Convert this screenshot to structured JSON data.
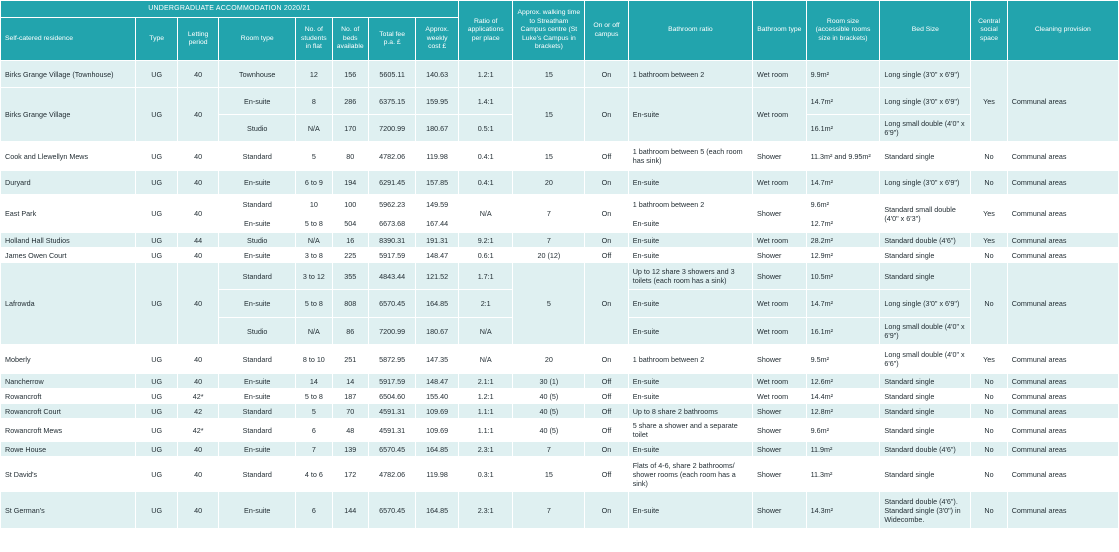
{
  "title": "UNDERGRADUATE ACCOMMODATION 2020/21",
  "headers": {
    "residence": "Self-catered residence",
    "type": "Type",
    "letting": "Letting period",
    "room_type": "Room type",
    "students": "No. of students in flat",
    "beds": "No. of beds available",
    "fee": "Total fee p.a. £",
    "weekly": "Approx. weekly cost £",
    "ratio": "Ratio of applications per place",
    "walk": "Approx. walking time to Streatham Campus centre (St Luke's Campus in brackets)",
    "campus": "On or off campus",
    "bathroom_ratio": "Bathroom ratio",
    "bathroom_type": "Bathroom type",
    "room_size": "Room size (accessible rooms size in brackets)",
    "bed_size": "Bed Size",
    "social": "Central social space",
    "cleaning": "Cleaning provision"
  },
  "cells": {
    "r0": {
      "name": "Birks Grange Village (Townhouse)",
      "type": "UG",
      "let": "40",
      "room": "Townhouse",
      "students": "12",
      "beds": "156",
      "fee": "5605.11",
      "weekly": "140.63",
      "ratio": "1.2:1",
      "walk": "15",
      "campus": "On",
      "bath": "1 bathroom between 2",
      "btype": "Wet room",
      "size": "9.9m²",
      "bed": "Long single (3'0\" x 6'9\")"
    },
    "social_birks": "Yes",
    "cleaning_birks": "Communal areas",
    "r1": {
      "name": "Birks Grange Village",
      "type": "UG",
      "let": "40",
      "room": "En-suite",
      "students": "8",
      "beds": "286",
      "fee": "6375.15",
      "weekly": "159.95",
      "ratio": "1.4:1",
      "walk": "15",
      "campus": "On",
      "bath": "En-suite",
      "btype": "Wet room",
      "size": "14.7m²",
      "bed": "Long single (3'0\" x 6'9\")"
    },
    "r1b": {
      "room": "Studio",
      "students": "N/A",
      "beds": "170",
      "fee": "7200.99",
      "weekly": "180.67",
      "ratio": "0.5:1",
      "size": "16.1m²",
      "bed": "Long small double (4'0\" x 6'9\")"
    },
    "r2": {
      "name": "Cook and Llewellyn Mews",
      "type": "UG",
      "let": "40",
      "room": "Standard",
      "students": "5",
      "beds": "80",
      "fee": "4782.06",
      "weekly": "119.98",
      "ratio": "0.4:1",
      "walk": "15",
      "campus": "Off",
      "bath": "1 bathroom between 5 (each room has sink)",
      "btype": "Shower",
      "size": "11.3m² and 9.95m²",
      "bed": "Standard single",
      "social": "No",
      "clean": "Communal areas"
    },
    "r3": {
      "name": "Duryard",
      "type": "UG",
      "let": "40",
      "room": "En-suite",
      "students": "6 to 9",
      "beds": "194",
      "fee": "6291.45",
      "weekly": "157.85",
      "ratio": "0.4:1",
      "walk": "20",
      "campus": "On",
      "bath": "En-suite",
      "btype": "Wet room",
      "size": "14.7m²",
      "bed": "Long single (3'0\" x 6'9\")",
      "social": "No",
      "clean": "Communal areas"
    },
    "r4": {
      "name": "East Park",
      "type": "UG",
      "let": "40",
      "room": "Standard",
      "students": "10",
      "beds": "100",
      "fee": "5962.23",
      "weekly": "149.59",
      "ratio": "N/A",
      "walk": "7",
      "campus": "On",
      "bath": "1 bathroom between 2",
      "btype": "Shower",
      "size": "9.6m²",
      "bed": "Standard small double (4'0\" x 6'3\")",
      "social": "Yes",
      "clean": "Communal areas"
    },
    "r4b": {
      "room": "En-suite",
      "students": "5 to 8",
      "beds": "504",
      "fee": "6673.68",
      "weekly": "167.44",
      "bath": "En-suite",
      "size": "12.7m²"
    },
    "r5": {
      "name": "Holland Hall Studios",
      "type": "UG",
      "let": "44",
      "room": "Studio",
      "students": "N/A",
      "beds": "16",
      "fee": "8390.31",
      "weekly": "191.31",
      "ratio": "9.2:1",
      "walk": "7",
      "campus": "On",
      "bath": "En-suite",
      "btype": "Wet room",
      "size": "28.2m²",
      "bed": "Standard double (4'6\")",
      "social": "Yes",
      "clean": "Communal areas"
    },
    "r6": {
      "name": "James Owen Court",
      "type": "UG",
      "let": "40",
      "room": "En-suite",
      "students": "3 to 8",
      "beds": "225",
      "fee": "5917.59",
      "weekly": "148.47",
      "ratio": "0.6:1",
      "walk": "20 (12)",
      "campus": "Off",
      "bath": "En-suite",
      "btype": "Shower",
      "size": "12.9m²",
      "bed": "Standard single",
      "social": "No",
      "clean": "Communal areas"
    },
    "r7": {
      "name": "Lafrowda",
      "type": "UG",
      "let": "40",
      "room": "Standard",
      "students": "3 to 12",
      "beds": "355",
      "fee": "4843.44",
      "weekly": "121.52",
      "ratio": "1.7:1",
      "walk": "5",
      "campus": "On",
      "bath": "Up to 12 share 3 showers and 3 toilets (each room has a sink)",
      "btype": "Shower",
      "size": "10.5m²",
      "bed": "Standard single",
      "social": "No",
      "clean": "Communal areas"
    },
    "r7b": {
      "room": "En-suite",
      "students": "5 to 8",
      "beds": "808",
      "fee": "6570.45",
      "weekly": "164.85",
      "ratio": "2:1",
      "bath": "En-suite",
      "btype": "Wet room",
      "size": "14.7m²",
      "bed": "Long single (3'0\" x 6'9\")"
    },
    "r7c": {
      "room": "Studio",
      "students": "N/A",
      "beds": "86",
      "fee": "7200.99",
      "weekly": "180.67",
      "ratio": "N/A",
      "bath": "En-suite",
      "btype": "Wet room",
      "size": "16.1m²",
      "bed": "Long small double (4'0\" x 6'9\")"
    },
    "r8": {
      "name": "Moberly",
      "type": "UG",
      "let": "40",
      "room": "Standard",
      "students": "8 to 10",
      "beds": "251",
      "fee": "5872.95",
      "weekly": "147.35",
      "ratio": "N/A",
      "walk": "20",
      "campus": "On",
      "bath": "1 bathroom between 2",
      "btype": "Shower",
      "size": "9.5m²",
      "bed": "Long small double (4'0\" x 6'6\")",
      "social": "Yes",
      "clean": "Communal areas"
    },
    "r9": {
      "name": "Nancherrow",
      "type": "UG",
      "let": "40",
      "room": "En-suite",
      "students": "14",
      "beds": "14",
      "fee": "5917.59",
      "weekly": "148.47",
      "ratio": "2.1:1",
      "walk": "30 (1)",
      "campus": "Off",
      "bath": "En-suite",
      "btype": "Wet room",
      "size": "12.6m²",
      "bed": "Standard single",
      "social": "No",
      "clean": "Communal areas"
    },
    "r10": {
      "name": "Rowancroft",
      "type": "UG",
      "let": "42*",
      "room": "En-suite",
      "students": "5 to 8",
      "beds": "187",
      "fee": "6504.60",
      "weekly": "155.40",
      "ratio": "1.2:1",
      "walk": "40 (5)",
      "campus": "Off",
      "bath": "En-suite",
      "btype": "Wet room",
      "size": "14.4m²",
      "bed": "Standard single",
      "social": "No",
      "clean": "Communal areas"
    },
    "r11": {
      "name": "Rowancroft Court",
      "type": "UG",
      "let": "42",
      "room": "Standard",
      "students": "5",
      "beds": "70",
      "fee": "4591.31",
      "weekly": "109.69",
      "ratio": "1.1:1",
      "walk": "40 (5)",
      "campus": "Off",
      "bath": "Up to 8 share 2 bathrooms",
      "btype": "Shower",
      "size": "12.8m²",
      "bed": "Standard single",
      "social": "No",
      "clean": "Communal areas"
    },
    "r12": {
      "name": "Rowancroft Mews",
      "type": "UG",
      "let": "42*",
      "room": "Standard",
      "students": "6",
      "beds": "48",
      "fee": "4591.31",
      "weekly": "109.69",
      "ratio": "1.1:1",
      "walk": "40 (5)",
      "campus": "Off",
      "bath": "5 share a shower and a separate toilet",
      "btype": "Shower",
      "size": "9.6m²",
      "bed": "Standard single",
      "social": "No",
      "clean": "Communal areas"
    },
    "r13": {
      "name": "Rowe House",
      "type": "UG",
      "let": "40",
      "room": "En-suite",
      "students": "7",
      "beds": "139",
      "fee": "6570.45",
      "weekly": "164.85",
      "ratio": "2.3:1",
      "walk": "7",
      "campus": "On",
      "bath": "En-suite",
      "btype": "Shower",
      "size": "11.9m²",
      "bed": "Standard double (4'6\")",
      "social": "No",
      "clean": "Communal areas"
    },
    "r14": {
      "name": "St David's",
      "type": "UG",
      "let": "40",
      "room": "Standard",
      "students": "4 to 6",
      "beds": "172",
      "fee": "4782.06",
      "weekly": "119.98",
      "ratio": "0.3:1",
      "walk": "15",
      "campus": "Off",
      "bath": "Flats of 4-6, share 2 bathrooms/ shower rooms (each room has a sink)",
      "btype": "Shower",
      "size": "11.3m²",
      "bed": "Standard single",
      "social": "No",
      "clean": "Communal areas"
    },
    "r15": {
      "name": "St German's",
      "type": "UG",
      "let": "40",
      "room": "En-suite",
      "students": "6",
      "beds": "144",
      "fee": "6570.45",
      "weekly": "164.85",
      "ratio": "2.3:1",
      "walk": "7",
      "campus": "On",
      "bath": "En-suite",
      "btype": "Shower",
      "size": "14.3m²",
      "bed": "Standard double (4'6\"). Standard single (3'0\") in Widecombe.",
      "social": "No",
      "clean": "Communal areas"
    }
  }
}
